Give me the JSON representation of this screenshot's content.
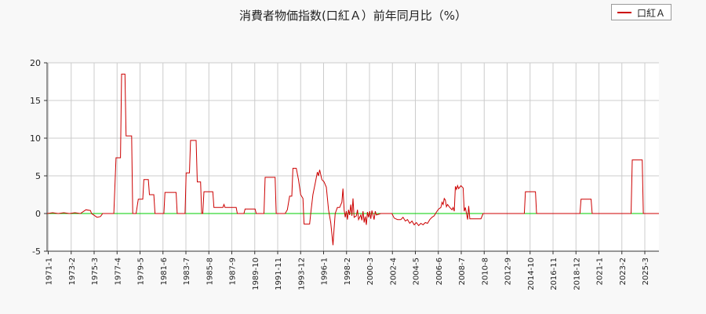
{
  "chart_data": {
    "type": "line",
    "title": "消費者物価指数(口紅Ａ）前年同月比（%）",
    "legend": {
      "label": "口紅Ａ",
      "placement": "top-right"
    },
    "ylim": [
      -5,
      20
    ],
    "yticks": [
      -5,
      0,
      5,
      10,
      15,
      20
    ],
    "xlim": [
      1971.0,
      2026.0
    ],
    "xticks": [
      "1971-1",
      "1973-2",
      "1975-3",
      "1977-4",
      "1979-5",
      "1981-6",
      "1983-7",
      "1985-8",
      "1987-9",
      "1989-10",
      "1991-11",
      "1993-12",
      "1996-1",
      "1998-2",
      "2000-3",
      "2002-4",
      "2004-5",
      "2006-6",
      "2008-7",
      "2010-8",
      "2012-9",
      "2014-10",
      "2016-11",
      "2018-12",
      "2021-1",
      "2023-2",
      "2025-3"
    ],
    "grid": true,
    "colors": {
      "series": "#cc0000",
      "zero_line": "#00cc00",
      "grid": "#cccccc"
    },
    "series": [
      {
        "name": "口紅Ａ",
        "points": [
          [
            1971.0,
            0
          ],
          [
            1971.5,
            0.1
          ],
          [
            1972.0,
            0
          ],
          [
            1972.5,
            0.1
          ],
          [
            1973.0,
            0
          ],
          [
            1973.5,
            0.1
          ],
          [
            1974.0,
            0
          ],
          [
            1974.5,
            0.5
          ],
          [
            1974.9,
            0.4
          ],
          [
            1975.0,
            0
          ],
          [
            1975.3,
            -0.3
          ],
          [
            1975.5,
            -0.5
          ],
          [
            1975.8,
            -0.4
          ],
          [
            1976.0,
            0
          ],
          [
            1976.5,
            0
          ],
          [
            1977.0,
            0
          ],
          [
            1977.2,
            7.4
          ],
          [
            1977.6,
            7.4
          ],
          [
            1977.7,
            18.5
          ],
          [
            1978.0,
            18.5
          ],
          [
            1978.1,
            10.3
          ],
          [
            1978.6,
            10.3
          ],
          [
            1978.7,
            0
          ],
          [
            1979.0,
            0
          ],
          [
            1979.2,
            1.9
          ],
          [
            1979.6,
            1.9
          ],
          [
            1979.7,
            4.5
          ],
          [
            1980.1,
            4.5
          ],
          [
            1980.2,
            2.5
          ],
          [
            1980.6,
            2.5
          ],
          [
            1980.7,
            0
          ],
          [
            1981.5,
            0
          ],
          [
            1981.6,
            2.8
          ],
          [
            1982.6,
            2.8
          ],
          [
            1982.7,
            0
          ],
          [
            1983.4,
            0
          ],
          [
            1983.5,
            5.4
          ],
          [
            1983.8,
            5.4
          ],
          [
            1983.9,
            9.7
          ],
          [
            1984.4,
            9.7
          ],
          [
            1984.5,
            4.2
          ],
          [
            1984.8,
            4.2
          ],
          [
            1984.9,
            0
          ],
          [
            1985.0,
            0
          ],
          [
            1985.1,
            2.9
          ],
          [
            1985.9,
            2.9
          ],
          [
            1986.0,
            0.8
          ],
          [
            1986.8,
            0.8
          ],
          [
            1986.9,
            1.2
          ],
          [
            1987.0,
            0.8
          ],
          [
            1988.0,
            0.8
          ],
          [
            1988.1,
            0
          ],
          [
            1988.7,
            0
          ],
          [
            1988.8,
            0.6
          ],
          [
            1989.7,
            0.6
          ],
          [
            1989.8,
            0
          ],
          [
            1990.5,
            0
          ],
          [
            1990.6,
            4.8
          ],
          [
            1991.5,
            4.8
          ],
          [
            1991.6,
            0
          ],
          [
            1992.4,
            0
          ],
          [
            1992.6,
            0.5
          ],
          [
            1992.8,
            2.3
          ],
          [
            1993.0,
            2.3
          ],
          [
            1993.1,
            6.0
          ],
          [
            1993.4,
            6.0
          ],
          [
            1993.6,
            4.5
          ],
          [
            1993.8,
            2.5
          ],
          [
            1994.0,
            2.0
          ],
          [
            1994.1,
            -1.4
          ],
          [
            1994.6,
            -1.4
          ],
          [
            1994.7,
            0
          ],
          [
            1994.9,
            2.5
          ],
          [
            1995.1,
            4.0
          ],
          [
            1995.3,
            5.5
          ],
          [
            1995.4,
            5.0
          ],
          [
            1995.5,
            5.8
          ],
          [
            1995.7,
            4.5
          ],
          [
            1995.9,
            4.2
          ],
          [
            1996.1,
            3.5
          ],
          [
            1996.3,
            0.5
          ],
          [
            1996.5,
            -1.2
          ],
          [
            1996.7,
            -4.2
          ],
          [
            1996.8,
            -2.0
          ],
          [
            1996.9,
            0
          ],
          [
            1997.1,
            0.8
          ],
          [
            1997.3,
            0.8
          ],
          [
            1997.5,
            1.5
          ],
          [
            1997.6,
            3.3
          ],
          [
            1997.7,
            0.5
          ],
          [
            1997.8,
            -0.5
          ],
          [
            1997.9,
            0.3
          ],
          [
            1998.0,
            -0.8
          ],
          [
            1998.1,
            0.5
          ],
          [
            1998.2,
            -0.2
          ],
          [
            1998.3,
            1.2
          ],
          [
            1998.4,
            -0.3
          ],
          [
            1998.5,
            2.0
          ],
          [
            1998.6,
            -0.5
          ],
          [
            1998.8,
            -0.3
          ],
          [
            1998.9,
            0.5
          ],
          [
            1999.0,
            -0.8
          ],
          [
            1999.2,
            -0.2
          ],
          [
            1999.3,
            -0.9
          ],
          [
            1999.4,
            0.3
          ],
          [
            1999.5,
            -1.2
          ],
          [
            1999.6,
            -0.4
          ],
          [
            1999.7,
            -1.5
          ],
          [
            1999.8,
            0.2
          ],
          [
            1999.9,
            -0.5
          ],
          [
            2000.0,
            0.3
          ],
          [
            2000.1,
            -0.7
          ],
          [
            2000.2,
            0.4
          ],
          [
            2000.3,
            -0.2
          ],
          [
            2000.4,
            -0.8
          ],
          [
            2000.5,
            0.3
          ],
          [
            2000.6,
            -0.2
          ],
          [
            2001.0,
            0
          ],
          [
            2001.5,
            0
          ],
          [
            2002.0,
            0
          ],
          [
            2002.2,
            -0.6
          ],
          [
            2002.5,
            -0.8
          ],
          [
            2002.8,
            -0.8
          ],
          [
            2003.0,
            -0.5
          ],
          [
            2003.2,
            -1.0
          ],
          [
            2003.4,
            -0.8
          ],
          [
            2003.6,
            -1.3
          ],
          [
            2003.8,
            -1.0
          ],
          [
            2004.0,
            -1.5
          ],
          [
            2004.2,
            -1.2
          ],
          [
            2004.4,
            -1.6
          ],
          [
            2004.6,
            -1.3
          ],
          [
            2004.8,
            -1.5
          ],
          [
            2005.0,
            -1.2
          ],
          [
            2005.2,
            -1.3
          ],
          [
            2005.4,
            -0.8
          ],
          [
            2005.6,
            -0.5
          ],
          [
            2005.8,
            -0.3
          ],
          [
            2006.0,
            0.2
          ],
          [
            2006.2,
            0.6
          ],
          [
            2006.4,
            0.8
          ],
          [
            2006.5,
            1.5
          ],
          [
            2006.6,
            1.2
          ],
          [
            2006.7,
            2.0
          ],
          [
            2006.8,
            1.8
          ],
          [
            2006.9,
            0.9
          ],
          [
            2007.0,
            1.2
          ],
          [
            2007.2,
            0.8
          ],
          [
            2007.4,
            0.5
          ],
          [
            2007.5,
            0.8
          ],
          [
            2007.6,
            0.3
          ],
          [
            2007.7,
            3.6
          ],
          [
            2007.8,
            3.2
          ],
          [
            2007.9,
            3.7
          ],
          [
            2008.0,
            3.3
          ],
          [
            2008.2,
            3.7
          ],
          [
            2008.4,
            3.4
          ],
          [
            2008.5,
            0.3
          ],
          [
            2008.6,
            0.8
          ],
          [
            2008.7,
            0
          ],
          [
            2008.8,
            -0.8
          ],
          [
            2008.9,
            1.0
          ],
          [
            2009.0,
            -0.7
          ],
          [
            2009.5,
            -0.7
          ],
          [
            2010.0,
            -0.7
          ],
          [
            2010.2,
            0
          ],
          [
            2011.0,
            0
          ],
          [
            2012.0,
            0
          ],
          [
            2013.0,
            0
          ],
          [
            2013.9,
            0
          ],
          [
            2014.0,
            2.9
          ],
          [
            2014.9,
            2.9
          ],
          [
            2015.0,
            0
          ],
          [
            2016.0,
            0
          ],
          [
            2017.0,
            0
          ],
          [
            2018.0,
            0
          ],
          [
            2018.9,
            0
          ],
          [
            2019.0,
            1.9
          ],
          [
            2019.9,
            1.9
          ],
          [
            2020.0,
            0
          ],
          [
            2021.0,
            0
          ],
          [
            2022.0,
            0
          ],
          [
            2023.0,
            0
          ],
          [
            2023.5,
            0
          ],
          [
            2023.6,
            7.1
          ],
          [
            2024.5,
            7.1
          ],
          [
            2024.6,
            0
          ],
          [
            2026.0,
            0
          ]
        ]
      }
    ]
  }
}
